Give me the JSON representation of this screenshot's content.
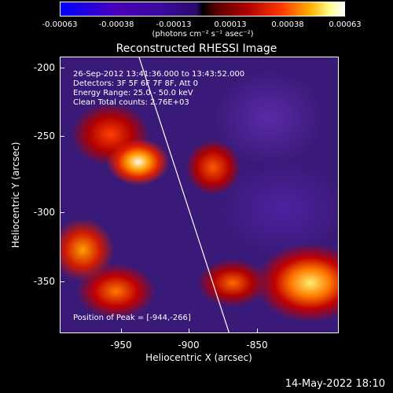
{
  "colorbar": {
    "ticks": [
      "-0.00063",
      "-0.00038",
      "-0.00013",
      "0.00013",
      "0.00038",
      "0.00063"
    ],
    "units": "(photons cm⁻² s⁻¹ asec⁻²)"
  },
  "title": "Reconstructed RHESSI Image",
  "info": {
    "time_range": "26-Sep-2012 13:41:36.000 to 13:43:52.000",
    "detectors": "Detectors: 3F 5F 6F 7F 8F, Att 0",
    "energy_range": "Energy Range: 25.0 - 50.0 keV",
    "clean_counts": "Clean    Total counts: 2.76E+03",
    "peak": "Position of Peak = [-944,-266]"
  },
  "axes": {
    "xlabel": "Heliocentric X (arcsec)",
    "ylabel": "Heliocentric Y (arcsec)",
    "xticks": [
      "-950",
      "-900",
      "-850"
    ],
    "yticks": [
      "-200",
      "-250",
      "-300",
      "-350"
    ]
  },
  "footer": "14-May-2022 18:10"
}
